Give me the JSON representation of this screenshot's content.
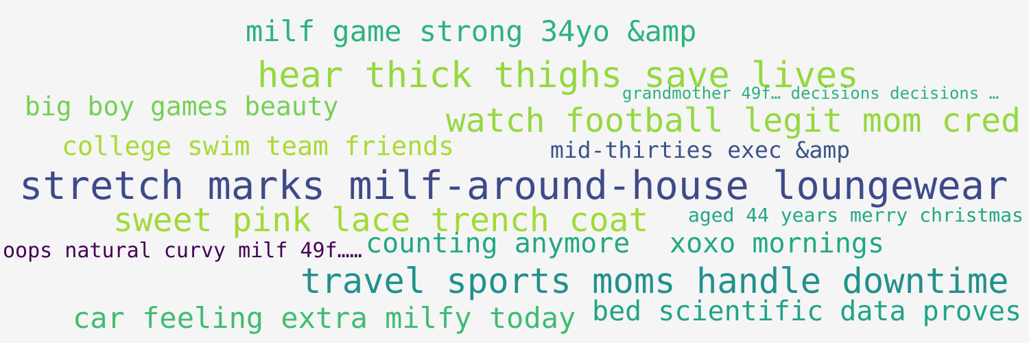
{
  "words": [
    {
      "text": "milf game strong 34yo &amp",
      "color": "#2db27d"
    },
    {
      "text": "hear thick thighs save lives",
      "color": "#95d840"
    },
    {
      "text": "grandmother 49f… decisions decisions …",
      "color": "#2db27d"
    },
    {
      "text": "big boy games beauty",
      "color": "#75d054"
    },
    {
      "text": "watch football legit mom cred",
      "color": "#95d840"
    },
    {
      "text": "college swim team friends",
      "color": "#a8db34"
    },
    {
      "text": "mid-thirties exec &amp",
      "color": "#3b528b"
    },
    {
      "text": "stretch marks milf-around-house loungewear",
      "color": "#3e4a89"
    },
    {
      "text": "sweet pink lace trench coat",
      "color": "#a2da37"
    },
    {
      "text": "aged 44 years merry christmas",
      "color": "#22a884"
    },
    {
      "text": "oops natural curvy milf 49f……",
      "color": "#440154"
    },
    {
      "text": "counting anymore",
      "color": "#22a884"
    },
    {
      "text": "xoxo mornings",
      "color": "#22a884"
    },
    {
      "text": "travel sports moms handle downtime",
      "color": "#21918c"
    },
    {
      "text": "bed scientific data proves",
      "color": "#20a486"
    },
    {
      "text": "car feeling extra milfy today",
      "color": "#3fbc73"
    }
  ]
}
